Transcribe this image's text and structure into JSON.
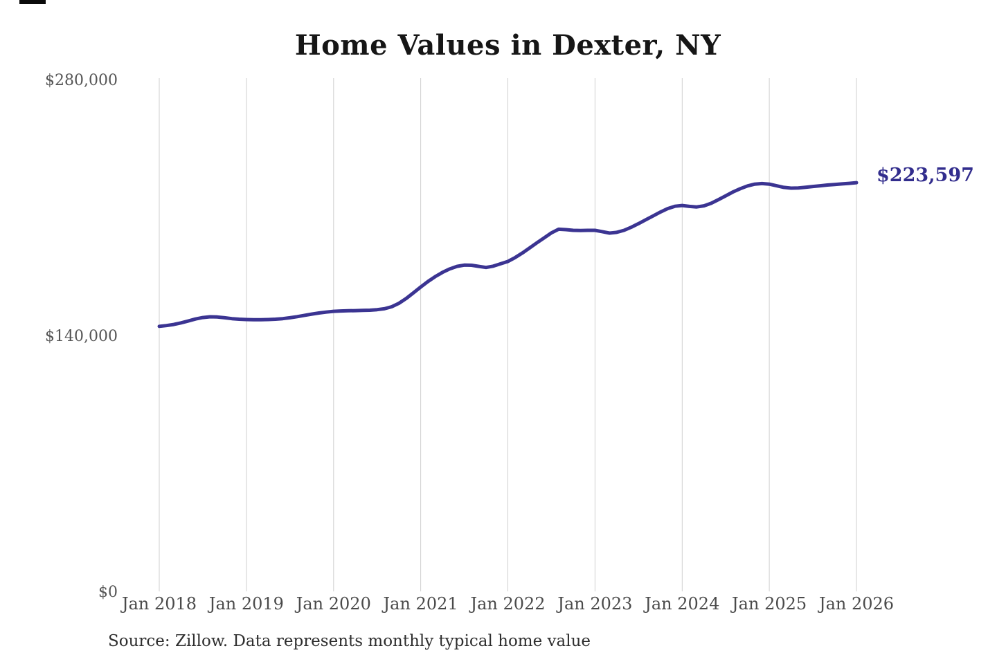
{
  "page": {
    "background": "#ffffff"
  },
  "chart_data": {
    "type": "line",
    "title": "Home Values in Dexter, NY",
    "source": "Source: Zillow. Data represents monthly typical home value",
    "series_name": "Monthly typical home value",
    "start_month": "2018-01",
    "end_month": "2026-01",
    "interval": "monthly",
    "values": [
      145000,
      145400,
      146000,
      146900,
      147900,
      149000,
      149800,
      150200,
      150100,
      149700,
      149200,
      148900,
      148700,
      148600,
      148600,
      148700,
      148900,
      149200,
      149700,
      150300,
      151000,
      151700,
      152300,
      152800,
      153200,
      153400,
      153500,
      153600,
      153700,
      153800,
      154100,
      154600,
      155700,
      157600,
      160200,
      163300,
      166500,
      169500,
      172200,
      174500,
      176400,
      177800,
      178500,
      178400,
      177800,
      177200,
      177900,
      179200,
      180500,
      182600,
      185100,
      187900,
      190700,
      193400,
      196100,
      198100,
      197900,
      197500,
      197400,
      197500,
      197500,
      196800,
      196000,
      196400,
      197500,
      199200,
      201200,
      203300,
      205400,
      207500,
      209400,
      210700,
      211100,
      210600,
      210300,
      210900,
      212300,
      214300,
      216400,
      218500,
      220300,
      221800,
      222800,
      223100,
      222800,
      221900,
      221000,
      220600,
      220700,
      221100,
      221500,
      221900,
      222300,
      222600,
      222900,
      223200,
      223597
    ],
    "latest_value": 223597,
    "end_label": "$223,597",
    "x_ticks": [
      "Jan 2018",
      "Jan 2019",
      "Jan 2020",
      "Jan 2021",
      "Jan 2022",
      "Jan 2023",
      "Jan 2024",
      "Jan 2025",
      "Jan 2026"
    ],
    "x_tick_month_indices": [
      0,
      12,
      24,
      36,
      48,
      60,
      72,
      84,
      96
    ],
    "y_ticks": [
      {
        "value": 0,
        "label": "$0"
      },
      {
        "value": 140000,
        "label": "$140,000"
      },
      {
        "value": 280000,
        "label": "$280,000"
      }
    ],
    "ylim": [
      0,
      280000
    ],
    "grid": "vertical-only",
    "legend": "none",
    "colors": {
      "line": "#3b3492",
      "end_label": "#322d8d",
      "grid": "#cfcfcf",
      "x_tick": "#4a4a4a",
      "y_tick": "#555555",
      "title": "#161616",
      "source": "#2e2e2e"
    }
  }
}
